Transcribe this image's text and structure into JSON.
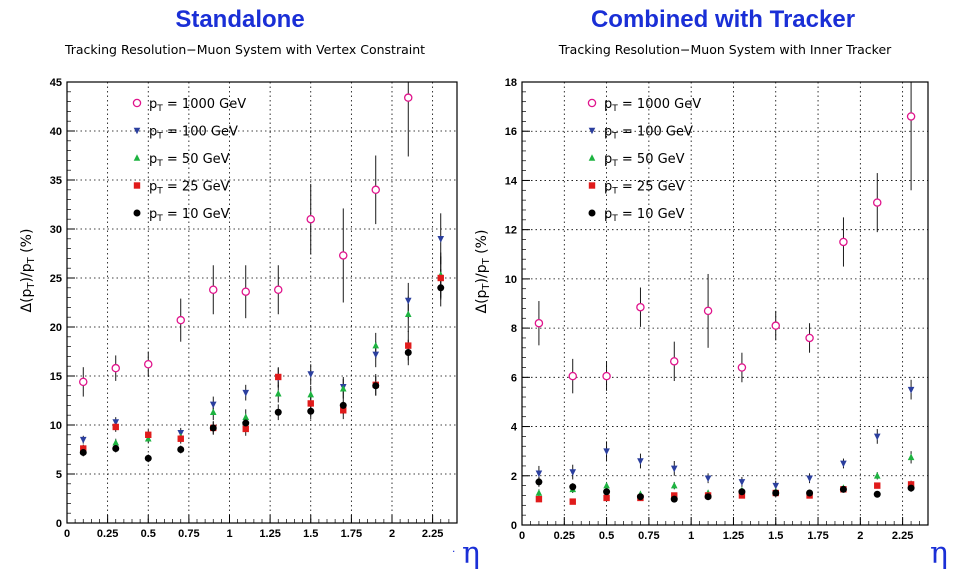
{
  "headers": {
    "left": "Standalone",
    "right": "Combined with Tracker",
    "left_subtitle": "Tracking Resolution−Muon System with Vertex Constraint",
    "right_subtitle": "Tracking Resolution−Muon System with Inner Tracker",
    "eta_symbol": "η",
    "small_dot": "."
  },
  "chart_data": [
    {
      "type": "scatter",
      "title": "Tracking Resolution−Muon System with Vertex Constraint",
      "xlabel": "η",
      "ylabel": "Δ(p_T)/p_T (%)",
      "xlim": [
        0,
        2.4
      ],
      "ylim": [
        0,
        45
      ],
      "xticks": [
        "0",
        "0.25",
        "0.5",
        "0.75",
        "1",
        "1.25",
        "1.5",
        "1.75",
        "2",
        "2.25"
      ],
      "yticks": [
        "0",
        "5",
        "10",
        "15",
        "20",
        "25",
        "30",
        "35",
        "40",
        "45"
      ],
      "grid": true,
      "legend_position": "top-left",
      "series": [
        {
          "name": "p_T = 1000 GeV",
          "marker": "open-circle",
          "color": "#e0148c",
          "x": [
            0.1,
            0.3,
            0.5,
            0.7,
            0.9,
            1.1,
            1.3,
            1.5,
            1.7,
            1.9,
            2.1
          ],
          "y": [
            14.4,
            15.8,
            16.2,
            20.7,
            23.8,
            23.6,
            23.8,
            31.0,
            27.3,
            34.0,
            43.4
          ],
          "err": [
            1.5,
            1.3,
            1.3,
            2.2,
            2.5,
            2.7,
            2.5,
            3.6,
            4.8,
            3.5,
            6.0
          ]
        },
        {
          "name": "p_T = 100 GeV",
          "marker": "triangle-down",
          "color": "#2b3f9e",
          "x": [
            0.1,
            0.3,
            0.5,
            0.7,
            0.9,
            1.1,
            1.3,
            1.5,
            1.7,
            1.9,
            2.1,
            2.3
          ],
          "y": [
            8.5,
            10.3,
            8.8,
            9.2,
            12.1,
            13.3,
            14.8,
            15.2,
            13.9,
            17.2,
            22.7,
            29.0
          ],
          "err": [
            0.4,
            0.5,
            0.5,
            0.5,
            0.8,
            0.8,
            1.0,
            1.0,
            1.0,
            1.3,
            1.8,
            2.6
          ]
        },
        {
          "name": "p_T = 50 GeV",
          "marker": "triangle-up",
          "color": "#1db340",
          "x": [
            0.1,
            0.3,
            0.5,
            0.7,
            0.9,
            1.1,
            1.3,
            1.5,
            1.7,
            1.9,
            2.1,
            2.3
          ],
          "y": [
            7.5,
            8.2,
            8.6,
            8.8,
            11.3,
            10.8,
            13.2,
            13.1,
            13.7,
            18.1,
            21.3,
            25.3
          ],
          "err": [
            0.4,
            0.4,
            0.4,
            0.5,
            0.8,
            0.8,
            0.9,
            0.9,
            1.0,
            1.3,
            1.8,
            2.3
          ]
        },
        {
          "name": "p_T = 25 GeV",
          "marker": "square",
          "color": "#e01b1b",
          "x": [
            0.1,
            0.3,
            0.5,
            0.7,
            0.9,
            1.1,
            1.3,
            1.5,
            1.7,
            1.9,
            2.1,
            2.3
          ],
          "y": [
            7.6,
            9.8,
            9.0,
            8.6,
            9.7,
            9.6,
            14.9,
            12.2,
            11.5,
            14.1,
            18.1,
            25.0
          ],
          "err": [
            0.4,
            0.5,
            0.5,
            0.5,
            0.7,
            0.7,
            1.0,
            0.9,
            0.9,
            1.1,
            1.5,
            2.2
          ]
        },
        {
          "name": "p_T = 10 GeV",
          "marker": "filled-circle",
          "color": "#000000",
          "x": [
            0.1,
            0.3,
            0.5,
            0.7,
            0.9,
            1.1,
            1.3,
            1.5,
            1.7,
            1.9,
            2.1,
            2.3
          ],
          "y": [
            7.2,
            7.6,
            6.6,
            7.5,
            9.7,
            10.2,
            11.3,
            11.4,
            12.0,
            14.0,
            17.4,
            24.0
          ],
          "err": [
            0.4,
            0.4,
            0.4,
            0.4,
            0.6,
            0.7,
            0.8,
            0.8,
            0.9,
            1.0,
            1.3,
            1.9
          ]
        }
      ]
    },
    {
      "type": "scatter",
      "title": "Tracking Resolution−Muon System with Inner Tracker",
      "xlabel": "η",
      "ylabel": "Δ(p_T)/p_T (%)",
      "xlim": [
        0,
        2.4
      ],
      "ylim": [
        0,
        18
      ],
      "xticks": [
        "0",
        "0.25",
        "0.5",
        "0.75",
        "1",
        "1.25",
        "1.5",
        "1.75",
        "2",
        "2.25"
      ],
      "yticks": [
        "0",
        "2",
        "4",
        "6",
        "8",
        "10",
        "12",
        "14",
        "16",
        "18"
      ],
      "grid": true,
      "legend_position": "top-left",
      "series": [
        {
          "name": "p_T = 1000 GeV",
          "marker": "open-circle",
          "color": "#e0148c",
          "x": [
            0.1,
            0.3,
            0.5,
            0.7,
            0.9,
            1.1,
            1.3,
            1.5,
            1.7,
            1.9,
            2.1,
            2.3
          ],
          "y": [
            8.2,
            6.05,
            6.05,
            8.85,
            6.65,
            8.7,
            6.4,
            8.1,
            7.6,
            11.5,
            13.1,
            16.6
          ],
          "err": [
            0.9,
            0.7,
            0.6,
            0.8,
            0.8,
            1.5,
            0.6,
            0.6,
            0.6,
            1.0,
            1.2,
            3.0
          ]
        },
        {
          "name": "p_T = 100 GeV",
          "marker": "triangle-down",
          "color": "#2b3f9e",
          "x": [
            0.1,
            0.3,
            0.5,
            0.7,
            0.9,
            1.1,
            1.3,
            1.5,
            1.7,
            1.9,
            2.1,
            2.3
          ],
          "y": [
            2.1,
            2.15,
            3.0,
            2.6,
            2.3,
            1.9,
            1.75,
            1.6,
            1.9,
            2.5,
            3.6,
            5.5
          ],
          "err": [
            0.3,
            0.3,
            0.4,
            0.3,
            0.3,
            0.2,
            0.2,
            0.2,
            0.2,
            0.2,
            0.3,
            0.4
          ]
        },
        {
          "name": "p_T = 50 GeV",
          "marker": "triangle-up",
          "color": "#1db340",
          "x": [
            0.1,
            0.3,
            0.5,
            0.7,
            0.9,
            1.1,
            1.3,
            1.5,
            1.7,
            1.9,
            2.1,
            2.3
          ],
          "y": [
            1.3,
            1.45,
            1.6,
            1.25,
            1.6,
            1.3,
            1.4,
            1.35,
            1.3,
            1.5,
            2.0,
            2.75
          ],
          "err": [
            0.15,
            0.15,
            0.15,
            0.1,
            0.15,
            0.1,
            0.1,
            0.1,
            0.1,
            0.1,
            0.15,
            0.25
          ]
        },
        {
          "name": "p_T = 25 GeV",
          "marker": "square",
          "color": "#e01b1b",
          "x": [
            0.1,
            0.3,
            0.5,
            0.7,
            0.9,
            1.1,
            1.3,
            1.5,
            1.7,
            1.9,
            2.1,
            2.3
          ],
          "y": [
            1.05,
            0.95,
            1.1,
            1.1,
            1.2,
            1.2,
            1.2,
            1.3,
            1.2,
            1.45,
            1.6,
            1.65
          ],
          "err": [
            0.1,
            0.1,
            0.1,
            0.1,
            0.1,
            0.1,
            0.1,
            0.1,
            0.1,
            0.1,
            0.1,
            0.15
          ]
        },
        {
          "name": "p_T = 10 GeV",
          "marker": "filled-circle",
          "color": "#000000",
          "x": [
            0.1,
            0.3,
            0.5,
            0.7,
            0.9,
            1.1,
            1.3,
            1.5,
            1.7,
            1.9,
            2.1,
            2.3
          ],
          "y": [
            1.75,
            1.55,
            1.35,
            1.15,
            1.05,
            1.15,
            1.35,
            1.3,
            1.3,
            1.45,
            1.25,
            1.5
          ],
          "err": [
            0.2,
            0.15,
            0.15,
            0.1,
            0.1,
            0.1,
            0.1,
            0.1,
            0.1,
            0.1,
            0.1,
            0.15
          ]
        }
      ]
    }
  ]
}
